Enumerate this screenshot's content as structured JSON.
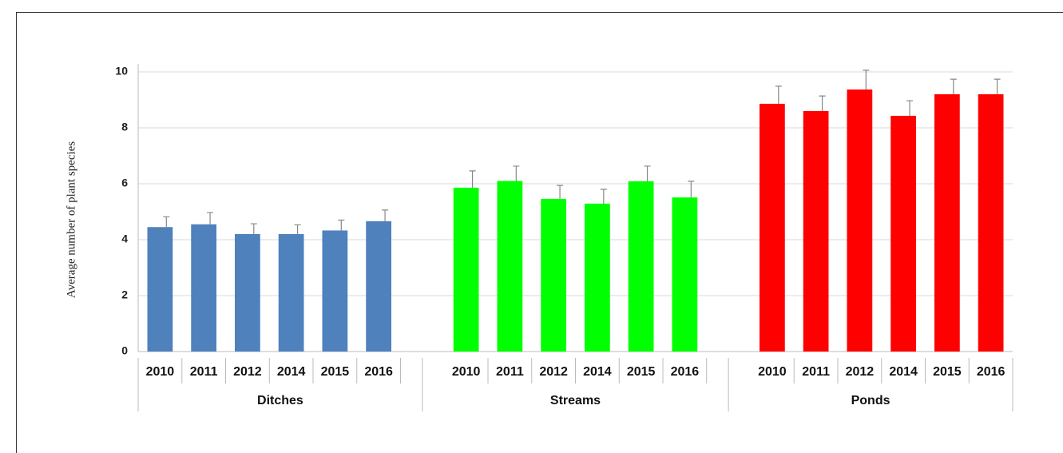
{
  "chart_data": {
    "type": "bar",
    "y_label": "Average number of plant species",
    "ylim": [
      0,
      10
    ],
    "yticks": [
      0,
      2,
      4,
      6,
      8,
      10
    ],
    "grid": true,
    "groups": [
      {
        "name": "Ditches",
        "color": "#4f81bd",
        "categories": [
          "2010",
          "2011",
          "2012",
          "2014",
          "2015",
          "2016"
        ],
        "values": [
          4.45,
          4.55,
          4.2,
          4.2,
          4.33,
          4.66
        ],
        "errors": [
          0.37,
          0.42,
          0.37,
          0.33,
          0.37,
          0.4
        ]
      },
      {
        "name": "Streams",
        "color": "#00ff00",
        "categories": [
          "2010",
          "2011",
          "2012",
          "2014",
          "2015",
          "2016"
        ],
        "values": [
          5.86,
          6.1,
          5.46,
          5.29,
          6.09,
          5.51
        ],
        "errors": [
          0.6,
          0.53,
          0.48,
          0.51,
          0.54,
          0.58
        ]
      },
      {
        "name": "Ponds",
        "color": "#ff0000",
        "categories": [
          "2010",
          "2011",
          "2012",
          "2014",
          "2015",
          "2016"
        ],
        "values": [
          8.86,
          8.6,
          9.37,
          8.43,
          9.2,
          9.2
        ],
        "errors": [
          0.63,
          0.54,
          0.69,
          0.54,
          0.54,
          0.54
        ]
      }
    ]
  }
}
